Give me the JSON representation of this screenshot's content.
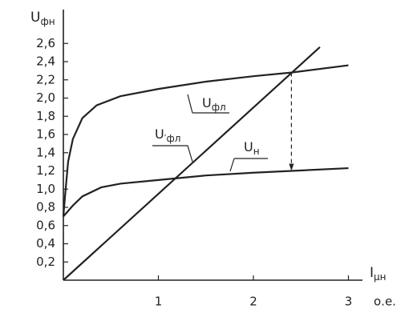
{
  "chart_data": {
    "type": "line",
    "y_label": "Uфн",
    "x_label": "Iμн",
    "x_unit": "о.е.",
    "xlim": [
      0,
      3.1
    ],
    "ylim": [
      0,
      2.85
    ],
    "xticks": [
      1,
      2,
      3
    ],
    "yticks": [
      {
        "value": 0.2,
        "label": "0,2"
      },
      {
        "value": 0.4,
        "label": "0,4"
      },
      {
        "value": 0.6,
        "label": "0,6"
      },
      {
        "value": 0.8,
        "label": "0,8"
      },
      {
        "value": 1.0,
        "label": "1,0"
      },
      {
        "value": 1.2,
        "label": "1,2"
      },
      {
        "value": 1.4,
        "label": "1,4"
      },
      {
        "value": 1.6,
        "label": "1,6"
      },
      {
        "value": 1.8,
        "label": "1,8"
      },
      {
        "value": 2.0,
        "label": "2,0"
      },
      {
        "value": 2.2,
        "label": "2,2"
      },
      {
        "value": 2.4,
        "label": "2,4"
      },
      {
        "value": 2.6,
        "label": "2,6"
      }
    ],
    "series": [
      {
        "name": "Uфл",
        "color": "#222222",
        "x": [
          0,
          0.02,
          0.05,
          0.1,
          0.2,
          0.35,
          0.6,
          1.0,
          1.5,
          2.0,
          2.4,
          3.0
        ],
        "values": [
          0.7,
          0.95,
          1.3,
          1.55,
          1.78,
          1.92,
          2.02,
          2.1,
          2.18,
          2.24,
          2.28,
          2.36
        ]
      },
      {
        "name": "U′фл",
        "color": "#222222",
        "x": [
          0,
          2.7
        ],
        "values": [
          0,
          2.56
        ]
      },
      {
        "name": "Uн",
        "color": "#222222",
        "x": [
          0,
          0.1,
          0.2,
          0.4,
          0.6,
          1.0,
          1.5,
          2.0,
          2.4,
          3.0
        ],
        "values": [
          0.7,
          0.82,
          0.92,
          1.02,
          1.06,
          1.1,
          1.15,
          1.18,
          1.2,
          1.23
        ]
      }
    ],
    "arrow": {
      "x": 2.4,
      "y_from": 2.28,
      "y_to": 1.2
    }
  }
}
